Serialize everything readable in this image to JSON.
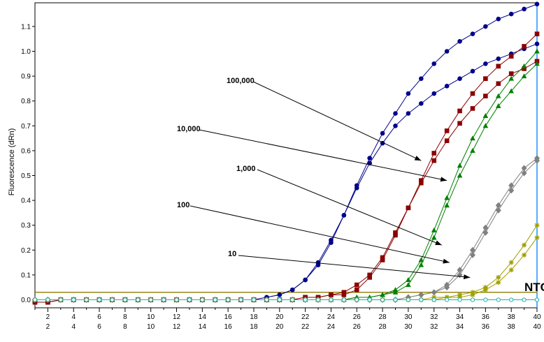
{
  "chart_data": {
    "type": "line",
    "title": "",
    "xlabel": "",
    "ylabel": "Fluorescence (dRn)",
    "xlim": [
      0,
      40
    ],
    "ylim": [
      -0.02,
      1.2
    ],
    "x_ticks": [
      2,
      4,
      6,
      8,
      10,
      12,
      14,
      16,
      18,
      20,
      22,
      24,
      26,
      28,
      30,
      32,
      34,
      36,
      38,
      40
    ],
    "y_ticks": [
      "0.0",
      "0.1",
      "0.2",
      "0.3",
      "0.4",
      "0.5",
      "0.6",
      "0.7",
      "0.8",
      "0.9",
      "1.0",
      "1.1"
    ],
    "grid": true,
    "threshold": 0.03,
    "x": [
      1,
      2,
      3,
      4,
      5,
      6,
      7,
      8,
      9,
      10,
      11,
      12,
      13,
      14,
      15,
      16,
      17,
      18,
      19,
      20,
      21,
      22,
      23,
      24,
      25,
      26,
      27,
      28,
      29,
      30,
      31,
      32,
      33,
      34,
      35,
      36,
      37,
      38,
      39,
      40
    ],
    "series": [
      {
        "color": "#00008b",
        "marker": "circle",
        "values": [
          -0.01,
          -0.01,
          0,
          0,
          0,
          0,
          0,
          0,
          0,
          0,
          0,
          0,
          0,
          0,
          0,
          0,
          0,
          0,
          0.01,
          0.02,
          0.04,
          0.08,
          0.15,
          0.24,
          0.34,
          0.46,
          0.57,
          0.67,
          0.75,
          0.83,
          0.89,
          0.95,
          1.0,
          1.04,
          1.07,
          1.1,
          1.13,
          1.15,
          1.17,
          1.19
        ]
      },
      {
        "color": "#00008b",
        "marker": "circle",
        "values": [
          -0.01,
          -0.01,
          0,
          0,
          0,
          0,
          0,
          0,
          0,
          0,
          0,
          0,
          0,
          0,
          0,
          0,
          0,
          0,
          0.01,
          0.02,
          0.04,
          0.08,
          0.14,
          0.23,
          0.34,
          0.45,
          0.55,
          0.63,
          0.7,
          0.75,
          0.79,
          0.83,
          0.86,
          0.89,
          0.92,
          0.95,
          0.97,
          0.99,
          1.01,
          1.03
        ]
      },
      {
        "color": "#8b0000",
        "marker": "square",
        "values": [
          -0.01,
          -0.01,
          0,
          0,
          0,
          0,
          0,
          0,
          0,
          0,
          0,
          0,
          0,
          0,
          0,
          0,
          0,
          0,
          0,
          0,
          0,
          0.01,
          0.01,
          0.02,
          0.03,
          0.06,
          0.1,
          0.17,
          0.27,
          0.37,
          0.48,
          0.59,
          0.68,
          0.76,
          0.83,
          0.89,
          0.94,
          0.98,
          1.02,
          1.07
        ]
      },
      {
        "color": "#8b0000",
        "marker": "square",
        "values": [
          -0.01,
          -0.01,
          0,
          0,
          0,
          0,
          0,
          0,
          0,
          0,
          0,
          0,
          0,
          0,
          0,
          0,
          0,
          0,
          0,
          0,
          0,
          0.01,
          0.01,
          0.02,
          0.02,
          0.04,
          0.09,
          0.16,
          0.26,
          0.37,
          0.47,
          0.56,
          0.64,
          0.71,
          0.77,
          0.82,
          0.87,
          0.91,
          0.93,
          0.96
        ]
      },
      {
        "color": "#008000",
        "marker": "triangle",
        "values": [
          0,
          0,
          0,
          0,
          0,
          0,
          0,
          0,
          0,
          0,
          0,
          0,
          0,
          0,
          0,
          0,
          0,
          0,
          0,
          0,
          0,
          0,
          0,
          0,
          0,
          0.01,
          0.01,
          0.02,
          0.04,
          0.08,
          0.16,
          0.28,
          0.41,
          0.54,
          0.65,
          0.74,
          0.82,
          0.89,
          0.94,
          1.0
        ]
      },
      {
        "color": "#008000",
        "marker": "triangle",
        "values": [
          0,
          0,
          0,
          0,
          0,
          0,
          0,
          0,
          0,
          0,
          0,
          0,
          0,
          0,
          0,
          0,
          0,
          0,
          0,
          0,
          0,
          0,
          0,
          0,
          0,
          0.01,
          0.01,
          0.02,
          0.03,
          0.06,
          0.14,
          0.25,
          0.38,
          0.5,
          0.6,
          0.7,
          0.78,
          0.84,
          0.9,
          0.95
        ]
      },
      {
        "color": "#808080",
        "marker": "diamond",
        "values": [
          0,
          0,
          0,
          0,
          0,
          0,
          0,
          0,
          0,
          0,
          0,
          0,
          0,
          0,
          0,
          0,
          0,
          0,
          0,
          0,
          0,
          0,
          0,
          0,
          0,
          0,
          0,
          0,
          0,
          0.01,
          0.02,
          0.03,
          0.06,
          0.12,
          0.2,
          0.29,
          0.38,
          0.46,
          0.53,
          0.57
        ]
      },
      {
        "color": "#808080",
        "marker": "diamond",
        "values": [
          0,
          0,
          0,
          0,
          0,
          0,
          0,
          0,
          0,
          0,
          0,
          0,
          0,
          0,
          0,
          0,
          0,
          0,
          0,
          0,
          0,
          0,
          0,
          0,
          0,
          0,
          0,
          0,
          0,
          0.01,
          0.02,
          0.03,
          0.05,
          0.1,
          0.18,
          0.27,
          0.36,
          0.44,
          0.51,
          0.56
        ]
      },
      {
        "color": "#a0a000",
        "marker": "star",
        "values": [
          0,
          0,
          0,
          0,
          0,
          0,
          0,
          0,
          0,
          0,
          0,
          0,
          0,
          0,
          0,
          0,
          0,
          0,
          0,
          0,
          0,
          0,
          0,
          0,
          0,
          0,
          0,
          0,
          0,
          0,
          0,
          0.01,
          0.01,
          0.02,
          0.03,
          0.05,
          0.09,
          0.15,
          0.22,
          0.3
        ]
      },
      {
        "color": "#a0a000",
        "marker": "star",
        "values": [
          0,
          0,
          0,
          0,
          0,
          0,
          0,
          0,
          0,
          0,
          0,
          0,
          0,
          0,
          0,
          0,
          0,
          0,
          0,
          0,
          0,
          0,
          0,
          0,
          0,
          0,
          0,
          0,
          0,
          0,
          0,
          0,
          0.01,
          0.01,
          0.02,
          0.04,
          0.07,
          0.12,
          0.18,
          0.25
        ]
      },
      {
        "color": "#20b2aa",
        "marker": "circle-open",
        "values": [
          0,
          0,
          0,
          0,
          0,
          0,
          0,
          0,
          0,
          0,
          0,
          0,
          0,
          0,
          0,
          0,
          0,
          0,
          0,
          0,
          0,
          0,
          0,
          0,
          0,
          0,
          0,
          0,
          0,
          0,
          0,
          0,
          0,
          0,
          0,
          0,
          0,
          0,
          0,
          0
        ]
      }
    ],
    "annotations": [
      {
        "text": "100,000",
        "target": [
          31,
          0.56
        ]
      },
      {
        "text": "10,000",
        "target": [
          33,
          0.48
        ]
      },
      {
        "text": "1,000",
        "target": [
          32.6,
          0.22
        ]
      },
      {
        "text": "100",
        "target": [
          33.2,
          0.15
        ]
      },
      {
        "text": "10",
        "target": [
          34.8,
          0.09
        ]
      },
      {
        "text": "NTC"
      }
    ]
  }
}
